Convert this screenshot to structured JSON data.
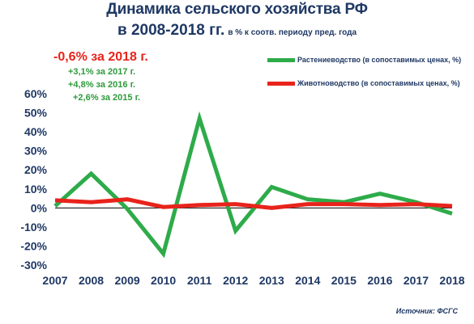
{
  "title": {
    "line1": "Динамика сельского хозяйства РФ",
    "line2": "в 2008-2018 гг.",
    "subtitle": "в % к соотв. периоду пред. года"
  },
  "annotations": {
    "main": "-0,6% за 2018 г.",
    "y2017": "+3,1% за 2017 г.",
    "y2016": "+4,8% за 2016 г.",
    "y2015": "+2,6% за 2015 г."
  },
  "source": "Источник: ФСГС",
  "colors": {
    "crop": "#2eab4a",
    "livestock": "#e8231b",
    "title": "#1f3864",
    "accent_red": "#e8231b",
    "accent_green": "#2e9a3a"
  },
  "chart_data": {
    "type": "line",
    "x": [
      "2007",
      "2008",
      "2009",
      "2010",
      "2011",
      "2012",
      "2013",
      "2014",
      "2015",
      "2016",
      "2017",
      "2018"
    ],
    "yticks": [
      "60%",
      "50%",
      "40%",
      "30%",
      "20%",
      "10%",
      "0%",
      "-10%",
      "-20%",
      "-30%"
    ],
    "ylim": [
      -30,
      60
    ],
    "series": [
      {
        "name": "Растениеводство (в сопоставимых ценах, %)",
        "color": "#2eab4a",
        "values": [
          1.0,
          18.0,
          -0.5,
          -24.0,
          47.0,
          -12.0,
          11.0,
          4.5,
          3.0,
          7.5,
          3.0,
          -3.0
        ]
      },
      {
        "name": "Животноводство (в сопоставимых ценах, %)",
        "color": "#e8231b",
        "values": [
          4.0,
          3.0,
          4.5,
          0.5,
          1.5,
          2.0,
          0.0,
          2.0,
          2.0,
          1.5,
          2.0,
          1.0
        ]
      }
    ]
  }
}
